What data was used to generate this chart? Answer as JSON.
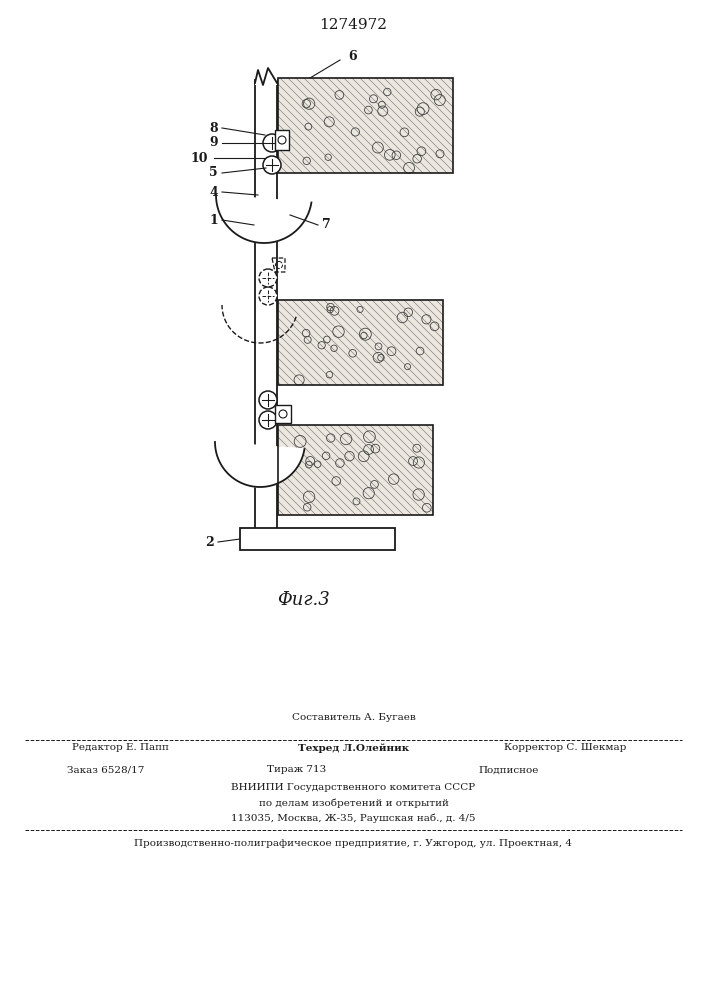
{
  "patent_number": "1274972",
  "figure_label": "Φиг.3",
  "background_color": "#ffffff",
  "line_color": "#1a1a1a",
  "footer_line1": "Составитель А. Бугаев",
  "footer_line2_left": "Редактор Е. Папп",
  "footer_line2_mid": "Техред Л.Олейник",
  "footer_line2_right": "Корректор С. Шекмар",
  "footer_line3_left": "Заказ 6528/17",
  "footer_line3_mid": "Тираж 713",
  "footer_line3_right": "Подписное",
  "footer_line4": "ВНИИПИ Государственного комитета СССР",
  "footer_line5": "по делам изобретений и открытий",
  "footer_line6": "113035, Москва, Ж-35, Раушская наб., д. 4/5",
  "footer_line7": "Производственно-полиграфическое предприятие, г. Ужгород, ул. Проектная, 4"
}
